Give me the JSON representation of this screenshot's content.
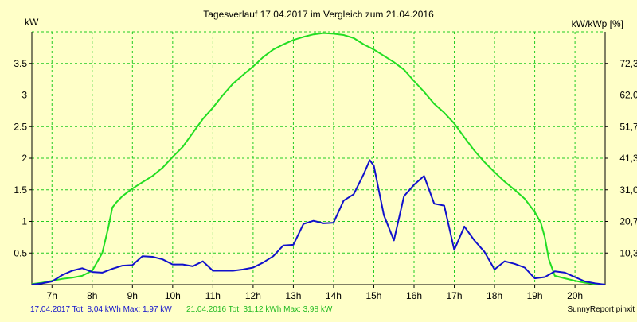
{
  "chart_data": {
    "type": "line",
    "title": "Tagesverlauf 17.04.2017 im Vergleich zum 21.04.2016",
    "ylabel_left": "kW",
    "ylabel_right": "kW/kWp [%]",
    "x_tick_labels": [
      "7h",
      "8h",
      "9h",
      "10h",
      "11h",
      "12h",
      "13h",
      "14h",
      "15h",
      "16h",
      "17h",
      "18h",
      "19h",
      "20h"
    ],
    "x_tick_hours": [
      7,
      8,
      9,
      10,
      11,
      12,
      13,
      14,
      15,
      16,
      17,
      18,
      19,
      20
    ],
    "xlim": [
      6.5,
      20.75
    ],
    "ylim": [
      0,
      4
    ],
    "y_ticks_left": [
      0.5,
      1,
      1.5,
      2,
      2.5,
      3,
      3.5
    ],
    "y_ticks_left_labels": [
      "0.5",
      "1",
      "1.5",
      "2",
      "2.5",
      "3",
      "3.5"
    ],
    "y_ticks_right": [
      "10,3",
      "20,7",
      "31,0",
      "41,3",
      "51,7",
      "62,0",
      "72,3"
    ],
    "grid": true,
    "legend_position": "bottom-left",
    "series": [
      {
        "name": "21.04.2016",
        "color": "#22dd22",
        "x": [
          6.5,
          6.75,
          7.0,
          7.25,
          7.5,
          7.75,
          8.0,
          8.25,
          8.4,
          8.5,
          8.6,
          8.75,
          9.0,
          9.25,
          9.5,
          9.75,
          10.0,
          10.25,
          10.5,
          10.75,
          11.0,
          11.25,
          11.5,
          11.75,
          12.0,
          12.25,
          12.5,
          12.75,
          13.0,
          13.25,
          13.5,
          13.75,
          14.0,
          14.25,
          14.5,
          14.75,
          15.0,
          15.25,
          15.5,
          15.75,
          16.0,
          16.25,
          16.5,
          16.75,
          17.0,
          17.25,
          17.5,
          17.75,
          18.0,
          18.25,
          18.5,
          18.75,
          19.0,
          19.15,
          19.25,
          19.35,
          19.5,
          19.75,
          20.0,
          20.25,
          20.5,
          20.75
        ],
        "values": [
          0.01,
          0.03,
          0.06,
          0.09,
          0.11,
          0.14,
          0.22,
          0.5,
          0.9,
          1.22,
          1.3,
          1.4,
          1.52,
          1.62,
          1.72,
          1.85,
          2.02,
          2.18,
          2.4,
          2.62,
          2.8,
          3.0,
          3.18,
          3.32,
          3.45,
          3.6,
          3.72,
          3.8,
          3.87,
          3.92,
          3.96,
          3.98,
          3.97,
          3.95,
          3.9,
          3.8,
          3.72,
          3.62,
          3.52,
          3.4,
          3.22,
          3.05,
          2.86,
          2.72,
          2.55,
          2.33,
          2.12,
          1.94,
          1.78,
          1.63,
          1.5,
          1.36,
          1.15,
          0.98,
          0.75,
          0.4,
          0.14,
          0.1,
          0.06,
          0.03,
          0.01,
          0.0
        ]
      },
      {
        "name": "17.04.2017",
        "color": "#1010cc",
        "x": [
          6.5,
          6.75,
          7.0,
          7.25,
          7.5,
          7.75,
          8.0,
          8.25,
          8.5,
          8.75,
          9.0,
          9.25,
          9.5,
          9.75,
          10.0,
          10.25,
          10.5,
          10.75,
          11.0,
          11.25,
          11.5,
          11.75,
          12.0,
          12.25,
          12.5,
          12.75,
          13.0,
          13.25,
          13.5,
          13.75,
          14.0,
          14.25,
          14.5,
          14.75,
          14.9,
          15.0,
          15.25,
          15.5,
          15.75,
          16.0,
          16.25,
          16.5,
          16.75,
          17.0,
          17.25,
          17.5,
          17.75,
          18.0,
          18.25,
          18.5,
          18.75,
          19.0,
          19.25,
          19.5,
          19.75,
          20.0,
          20.25,
          20.5,
          20.75
        ],
        "values": [
          0.0,
          0.02,
          0.05,
          0.15,
          0.22,
          0.26,
          0.2,
          0.19,
          0.25,
          0.3,
          0.31,
          0.45,
          0.44,
          0.4,
          0.32,
          0.32,
          0.29,
          0.37,
          0.22,
          0.22,
          0.22,
          0.24,
          0.27,
          0.35,
          0.45,
          0.62,
          0.63,
          0.96,
          1.01,
          0.97,
          0.98,
          1.33,
          1.43,
          1.75,
          1.97,
          1.88,
          1.1,
          0.7,
          1.4,
          1.58,
          1.72,
          1.28,
          1.25,
          0.55,
          0.92,
          0.7,
          0.52,
          0.24,
          0.37,
          0.33,
          0.27,
          0.1,
          0.12,
          0.21,
          0.19,
          0.12,
          0.05,
          0.02,
          0.0
        ]
      }
    ]
  },
  "footer": {
    "blue_text": "17.04.2017 Tot: 8,04 kWh Max: 1,97 kW",
    "green_text": "21.04.2016 Tot: 31,12 kWh Max: 3,98 kW",
    "credit": "SunnyReport pinxit"
  },
  "colors": {
    "background": "#ffffc8",
    "grid": "#22cc22",
    "axis": "#000000",
    "blue_series": "#1010cc",
    "green_series": "#22dd22"
  }
}
